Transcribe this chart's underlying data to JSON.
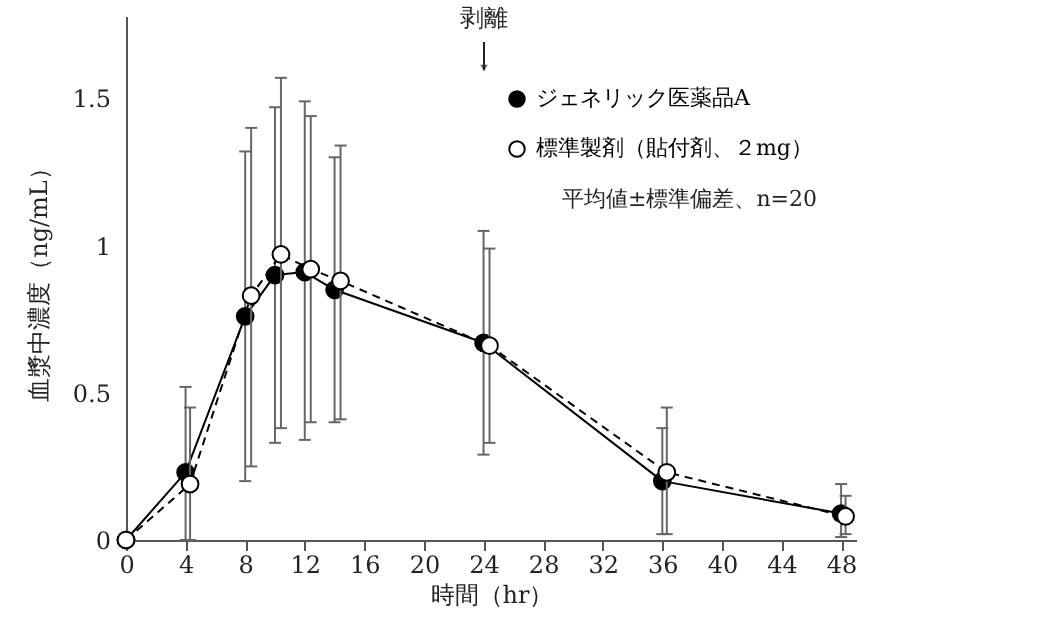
{
  "chart_data": {
    "type": "line",
    "xlabel": "時間（hr）",
    "ylabel": "血漿中濃度（ng/mL）",
    "xlim": [
      0,
      49
    ],
    "ylim": [
      0,
      1.78
    ],
    "xticks": [
      0,
      4,
      8,
      12,
      16,
      20,
      24,
      28,
      32,
      36,
      40,
      44,
      48
    ],
    "yticks": [
      0,
      0.5,
      1,
      1.5
    ],
    "grid": false,
    "legend": "top right",
    "marker": "circle",
    "series": [
      {
        "name": "ジェネリック医薬品A",
        "color": "#000000",
        "line_style": "solid",
        "x": [
          0,
          4,
          8,
          10,
          12,
          14,
          24,
          36,
          48
        ],
        "values": [
          0,
          0.23,
          0.76,
          0.9,
          0.91,
          0.85,
          0.67,
          0.2,
          0.09
        ],
        "errors": [
          null,
          [
            0,
            0.52
          ],
          [
            0.2,
            1.32
          ],
          [
            0.33,
            1.47
          ],
          [
            0.34,
            1.49
          ],
          [
            0.4,
            1.3
          ],
          [
            0.29,
            1.05
          ],
          [
            0.02,
            0.38
          ],
          [
            0.01,
            0.19
          ]
        ]
      },
      {
        "name": "標準製剤（貼付剤、２mg）",
        "color": "#ffffff",
        "line_style": "dashed",
        "x": [
          0,
          4.3,
          8.4,
          10.4,
          12.4,
          14.4,
          24.4,
          36.3,
          48.3
        ],
        "values": [
          0,
          0.19,
          0.83,
          0.97,
          0.92,
          0.88,
          0.66,
          0.23,
          0.08
        ],
        "errors": [
          null,
          [
            0,
            0.45
          ],
          [
            0.25,
            1.4
          ],
          [
            0.38,
            1.57
          ],
          [
            0.4,
            1.44
          ],
          [
            0.41,
            1.34
          ],
          [
            0.33,
            0.99
          ],
          [
            0.02,
            0.45
          ],
          [
            0.02,
            0.15
          ]
        ]
      }
    ],
    "annotations": [
      "剥離",
      "平均値±標準偏差、n=20"
    ]
  }
}
